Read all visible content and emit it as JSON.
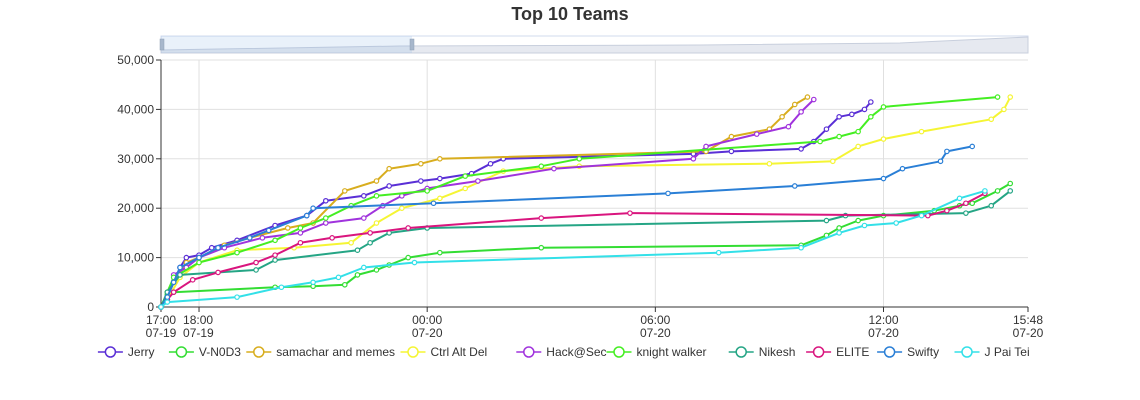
{
  "chart_data": {
    "type": "line",
    "title": "Top 10 Teams",
    "xlabel": "",
    "ylabel": "",
    "x_range": [
      "07-19 17:00",
      "07-20 15:48"
    ],
    "ylim": [
      0,
      50000
    ],
    "y_ticks": [
      "0",
      "10,000",
      "20,000",
      "30,000",
      "40,000",
      "50,000"
    ],
    "x_ticks": [
      {
        "t": "07-19 17:00",
        "line1": "17:00",
        "line2": "07-19"
      },
      {
        "t": "07-19 18:00",
        "line1": "18:00",
        "line2": "07-19"
      },
      {
        "t": "07-20 00:00",
        "line1": "00:00",
        "line2": "07-20"
      },
      {
        "t": "07-20 06:00",
        "line1": "06:00",
        "line2": "07-20"
      },
      {
        "t": "07-20 12:00",
        "line1": "12:00",
        "line2": "07-20"
      },
      {
        "t": "07-20 15:48",
        "line1": "15:48",
        "line2": "07-20"
      }
    ],
    "grid": true,
    "legend_position": "bottom",
    "datazoom_slider": true,
    "series": [
      {
        "name": "Jerry",
        "color": "#5a2fd6",
        "points": [
          [
            "07-19 17:00",
            0
          ],
          [
            "07-19 17:10",
            2000
          ],
          [
            "07-19 17:20",
            5000
          ],
          [
            "07-19 17:30",
            8000
          ],
          [
            "07-19 17:40",
            10000
          ],
          [
            "07-19 18:00",
            10500
          ],
          [
            "07-19 18:20",
            12000
          ],
          [
            "07-19 19:00",
            13500
          ],
          [
            "07-19 20:00",
            16500
          ],
          [
            "07-19 20:50",
            18500
          ],
          [
            "07-19 21:20",
            21500
          ],
          [
            "07-19 22:20",
            22500
          ],
          [
            "07-19 23:00",
            24500
          ],
          [
            "07-19 23:50",
            25500
          ],
          [
            "07-20 00:20",
            26000
          ],
          [
            "07-20 01:10",
            27000
          ],
          [
            "07-20 01:40",
            29000
          ],
          [
            "07-20 02:00",
            30000
          ],
          [
            "07-20 07:00",
            31000
          ],
          [
            "07-20 08:00",
            31500
          ],
          [
            "07-20 09:50",
            32000
          ],
          [
            "07-20 10:10",
            33500
          ],
          [
            "07-20 10:30",
            36000
          ],
          [
            "07-20 10:50",
            38500
          ],
          [
            "07-20 11:10",
            39000
          ],
          [
            "07-20 11:30",
            40000
          ],
          [
            "07-20 11:40",
            41500
          ]
        ]
      },
      {
        "name": "V-N0D3",
        "color": "#33dd33",
        "points": [
          [
            "07-19 17:00",
            0
          ],
          [
            "07-19 17:10",
            2500
          ],
          [
            "07-19 17:20",
            3000
          ],
          [
            "07-19 20:00",
            4000
          ],
          [
            "07-19 21:00",
            4200
          ],
          [
            "07-19 21:50",
            4500
          ],
          [
            "07-19 22:10",
            6500
          ],
          [
            "07-19 22:40",
            7500
          ],
          [
            "07-19 23:00",
            8500
          ],
          [
            "07-19 23:30",
            10000
          ],
          [
            "07-20 00:20",
            11000
          ],
          [
            "07-20 03:00",
            12000
          ],
          [
            "07-20 09:50",
            12500
          ],
          [
            "07-20 10:30",
            14500
          ],
          [
            "07-20 10:50",
            16000
          ],
          [
            "07-20 11:20",
            17500
          ],
          [
            "07-20 12:00",
            18500
          ],
          [
            "07-20 13:20",
            19500
          ],
          [
            "07-20 14:00",
            20500
          ],
          [
            "07-20 14:20",
            21000
          ],
          [
            "07-20 15:00",
            23500
          ],
          [
            "07-20 15:20",
            25000
          ]
        ]
      },
      {
        "name": "samachar and memes",
        "color": "#d8ad1e",
        "points": [
          [
            "07-19 17:00",
            0
          ],
          [
            "07-19 17:10",
            3000
          ],
          [
            "07-19 17:20",
            5000
          ],
          [
            "07-19 17:30",
            7000
          ],
          [
            "07-19 17:40",
            9000
          ],
          [
            "07-19 18:00",
            10000
          ],
          [
            "07-19 18:40",
            12500
          ],
          [
            "07-19 19:20",
            14000
          ],
          [
            "07-19 20:20",
            16000
          ],
          [
            "07-19 21:00",
            17000
          ],
          [
            "07-19 21:50",
            23500
          ],
          [
            "07-19 22:40",
            25500
          ],
          [
            "07-19 23:00",
            28000
          ],
          [
            "07-19 23:50",
            29000
          ],
          [
            "07-20 00:20",
            30000
          ],
          [
            "07-20 07:20",
            31500
          ],
          [
            "07-20 08:00",
            34500
          ],
          [
            "07-20 09:00",
            36000
          ],
          [
            "07-20 09:20",
            38500
          ],
          [
            "07-20 09:40",
            41000
          ],
          [
            "07-20 10:00",
            42500
          ]
        ]
      },
      {
        "name": "Ctrl Alt Del",
        "color": "#f5f534",
        "points": [
          [
            "07-19 17:00",
            0
          ],
          [
            "07-19 17:10",
            1500
          ],
          [
            "07-19 17:30",
            6000
          ],
          [
            "07-19 18:00",
            9000
          ],
          [
            "07-19 19:00",
            11500
          ],
          [
            "07-19 20:30",
            12000
          ],
          [
            "07-19 22:00",
            13000
          ],
          [
            "07-19 22:40",
            17000
          ],
          [
            "07-19 23:20",
            20000
          ],
          [
            "07-20 00:20",
            22000
          ],
          [
            "07-20 01:00",
            24000
          ],
          [
            "07-20 02:00",
            27500
          ],
          [
            "07-20 04:00",
            28500
          ],
          [
            "07-20 09:00",
            29000
          ],
          [
            "07-20 10:40",
            29500
          ],
          [
            "07-20 11:20",
            32500
          ],
          [
            "07-20 12:00",
            34000
          ],
          [
            "07-20 13:00",
            35500
          ],
          [
            "07-20 14:50",
            38000
          ],
          [
            "07-20 15:10",
            40000
          ],
          [
            "07-20 15:20",
            42500
          ]
        ]
      },
      {
        "name": "Hack@Sec",
        "color": "#a033dd",
        "points": [
          [
            "07-19 17:00",
            0
          ],
          [
            "07-19 17:10",
            1500
          ],
          [
            "07-19 17:20",
            6500
          ],
          [
            "07-19 17:40",
            8000
          ],
          [
            "07-19 18:00",
            10000
          ],
          [
            "07-19 18:40",
            12000
          ],
          [
            "07-19 19:40",
            14000
          ],
          [
            "07-19 20:40",
            15000
          ],
          [
            "07-19 21:20",
            17000
          ],
          [
            "07-19 22:20",
            18000
          ],
          [
            "07-19 22:50",
            20500
          ],
          [
            "07-19 23:20",
            22500
          ],
          [
            "07-20 00:00",
            24000
          ],
          [
            "07-20 01:20",
            25500
          ],
          [
            "07-20 03:20",
            28000
          ],
          [
            "07-20 07:00",
            30000
          ],
          [
            "07-20 07:20",
            32500
          ],
          [
            "07-20 08:40",
            35000
          ],
          [
            "07-20 09:30",
            36500
          ],
          [
            "07-20 09:50",
            39500
          ],
          [
            "07-20 10:10",
            42000
          ]
        ]
      },
      {
        "name": "knight walker",
        "color": "#44ee22",
        "points": [
          [
            "07-19 17:00",
            0
          ],
          [
            "07-19 17:10",
            3000
          ],
          [
            "07-19 17:20",
            6000
          ],
          [
            "07-19 18:00",
            9000
          ],
          [
            "07-19 19:00",
            11000
          ],
          [
            "07-19 20:00",
            13500
          ],
          [
            "07-19 20:40",
            16000
          ],
          [
            "07-19 21:20",
            18000
          ],
          [
            "07-19 22:00",
            20500
          ],
          [
            "07-19 22:40",
            22500
          ],
          [
            "07-20 00:00",
            23500
          ],
          [
            "07-20 01:00",
            26500
          ],
          [
            "07-20 03:00",
            28500
          ],
          [
            "07-20 04:00",
            30000
          ],
          [
            "07-20 10:20",
            33500
          ],
          [
            "07-20 10:50",
            34500
          ],
          [
            "07-20 11:20",
            35500
          ],
          [
            "07-20 11:40",
            38500
          ],
          [
            "07-20 12:00",
            40500
          ],
          [
            "07-20 15:00",
            42500
          ]
        ]
      },
      {
        "name": "Nikesh",
        "color": "#25a585",
        "points": [
          [
            "07-19 17:00",
            0
          ],
          [
            "07-19 17:10",
            3000
          ],
          [
            "07-19 17:30",
            6500
          ],
          [
            "07-19 19:30",
            7500
          ],
          [
            "07-19 20:00",
            9500
          ],
          [
            "07-19 22:10",
            11500
          ],
          [
            "07-19 22:30",
            13000
          ],
          [
            "07-19 23:00",
            15000
          ],
          [
            "07-20 00:00",
            16000
          ],
          [
            "07-20 10:30",
            17500
          ],
          [
            "07-20 11:00",
            18500
          ],
          [
            "07-20 14:10",
            19000
          ],
          [
            "07-20 14:50",
            20500
          ],
          [
            "07-20 15:20",
            23500
          ]
        ]
      },
      {
        "name": "ELITE",
        "color": "#d9157e",
        "points": [
          [
            "07-19 17:00",
            0
          ],
          [
            "07-19 17:10",
            1500
          ],
          [
            "07-19 17:20",
            3000
          ],
          [
            "07-19 17:50",
            5500
          ],
          [
            "07-19 18:30",
            7000
          ],
          [
            "07-19 19:30",
            9000
          ],
          [
            "07-19 20:00",
            10500
          ],
          [
            "07-19 20:40",
            13000
          ],
          [
            "07-19 21:30",
            14000
          ],
          [
            "07-19 22:30",
            15000
          ],
          [
            "07-19 23:30",
            16000
          ],
          [
            "07-20 03:00",
            18000
          ],
          [
            "07-20 05:20",
            19000
          ],
          [
            "07-20 13:10",
            18500
          ],
          [
            "07-20 13:40",
            19500
          ],
          [
            "07-20 14:10",
            21000
          ],
          [
            "07-20 14:40",
            23000
          ]
        ]
      },
      {
        "name": "Swifty",
        "color": "#2a7fd6",
        "points": [
          [
            "07-19 17:00",
            0
          ],
          [
            "07-19 17:10",
            2000
          ],
          [
            "07-19 17:20",
            5000
          ],
          [
            "07-19 17:30",
            8000
          ],
          [
            "07-19 18:00",
            10000
          ],
          [
            "07-19 18:30",
            12000
          ],
          [
            "07-19 19:20",
            14000
          ],
          [
            "07-19 19:50",
            15500
          ],
          [
            "07-19 20:50",
            18500
          ],
          [
            "07-19 21:00",
            20000
          ],
          [
            "07-20 00:10",
            21000
          ],
          [
            "07-20 06:20",
            23000
          ],
          [
            "07-20 09:40",
            24500
          ],
          [
            "07-20 12:00",
            26000
          ],
          [
            "07-20 12:30",
            28000
          ],
          [
            "07-20 13:30",
            29500
          ],
          [
            "07-20 13:40",
            31500
          ],
          [
            "07-20 14:20",
            32500
          ]
        ]
      },
      {
        "name": "J Pai Tei",
        "color": "#33e0e8",
        "points": [
          [
            "07-19 17:00",
            0
          ],
          [
            "07-19 17:10",
            1000
          ],
          [
            "07-19 19:00",
            2000
          ],
          [
            "07-19 20:10",
            4000
          ],
          [
            "07-19 21:00",
            5000
          ],
          [
            "07-19 21:40",
            6000
          ],
          [
            "07-19 22:20",
            8000
          ],
          [
            "07-19 23:40",
            9000
          ],
          [
            "07-20 07:40",
            11000
          ],
          [
            "07-20 09:50",
            12000
          ],
          [
            "07-20 10:50",
            15000
          ],
          [
            "07-20 11:30",
            16500
          ],
          [
            "07-20 12:20",
            17000
          ],
          [
            "07-20 13:00",
            18500
          ],
          [
            "07-20 14:00",
            22000
          ],
          [
            "07-20 14:40",
            23500
          ]
        ]
      }
    ]
  }
}
